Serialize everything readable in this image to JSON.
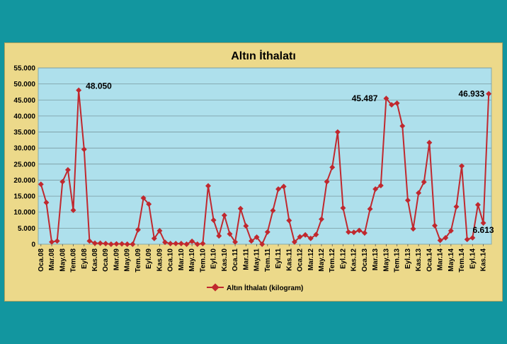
{
  "chart_data": {
    "type": "line",
    "title": "Altın İthalatı",
    "ylim": [
      0,
      55000
    ],
    "y_ticks": [
      "0",
      "5.000",
      "10.000",
      "15.000",
      "20.000",
      "25.000",
      "30.000",
      "35.000",
      "40.000",
      "45.000",
      "50.000",
      "55.000"
    ],
    "grid": "horizontal",
    "legend_position": "bottom",
    "colors": {
      "series": "#c0282e",
      "plot_bg": "#aee0ec",
      "frame_bg": "#ecd98a",
      "page_bg": "#12969f"
    },
    "x_tick_labels": [
      "Oca.08",
      "Mar.08",
      "May.08",
      "Tem.08",
      "Eyl.08",
      "Kas.08",
      "Oca.09",
      "Mar.09",
      "May.09",
      "Tem.09",
      "Eyl.09",
      "Kas.09",
      "Oca.10",
      "Mar.10",
      "May.10",
      "Tem.10",
      "Eyl.10",
      "Kas.10",
      "Oca.11",
      "Mar.11",
      "May.11",
      "Tem.11",
      "Eyl.11",
      "Kas.11",
      "Oca.12",
      "Mar.12",
      "May.12",
      "Tem.12",
      "Eyl.12",
      "Kas.12",
      "Oca.13",
      "Mar.13",
      "May.13",
      "Tem.13",
      "Eyl.13",
      "Kas.13",
      "Oca.14",
      "Mar.14",
      "May.14",
      "Tem.14",
      "Eyl.14",
      "Kas.14"
    ],
    "series": [
      {
        "name": "Altın İthalatı (kilogram)",
        "values": [
          18700,
          13000,
          700,
          1000,
          19500,
          23200,
          10600,
          48050,
          29600,
          1000,
          300,
          300,
          200,
          0,
          100,
          100,
          0,
          0,
          4500,
          14400,
          12500,
          1800,
          4200,
          600,
          200,
          200,
          200,
          0,
          900,
          0,
          200,
          18200,
          7500,
          2600,
          9000,
          3200,
          700,
          11100,
          5700,
          1000,
          2200,
          0,
          3800,
          10500,
          17200,
          18000,
          7400,
          700,
          2300,
          2900,
          1800,
          3000,
          7800,
          19500,
          24000,
          35000,
          11300,
          3800,
          3700,
          4300,
          3500,
          11000,
          17200,
          18300,
          45487,
          43500,
          44000,
          36900,
          13700,
          4800,
          16000,
          19400,
          31700,
          5800,
          1200,
          2000,
          4200,
          11700,
          24400,
          1500,
          2000,
          12300,
          6613,
          46933
        ]
      }
    ],
    "annotations": [
      {
        "label": "48.050",
        "index": 7
      },
      {
        "label": "45.487",
        "index": 64
      },
      {
        "label": "46.933",
        "index": 83
      },
      {
        "label": "6.613",
        "index": 82
      }
    ]
  }
}
